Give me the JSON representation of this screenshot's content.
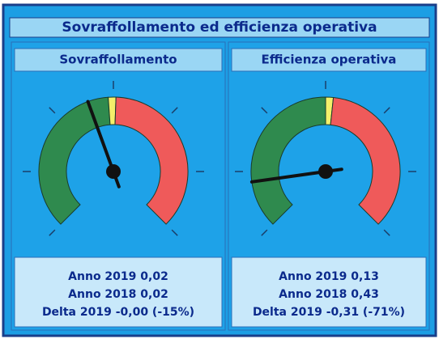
{
  "header": {
    "title": "Sovraffollamento ed efficienza operativa"
  },
  "panels": [
    {
      "title": "Sovraffollamento",
      "lines": [
        "Anno 2019 0,02",
        "Anno 2018 0,02",
        "Delta 2019 -0,00 (-15%)"
      ]
    },
    {
      "title": "Efficienza operativa",
      "lines": [
        "Anno 2019 0,13",
        "Anno 2018 0,43",
        "Delta 2019 -0,31 (-71%)"
      ]
    }
  ]
}
